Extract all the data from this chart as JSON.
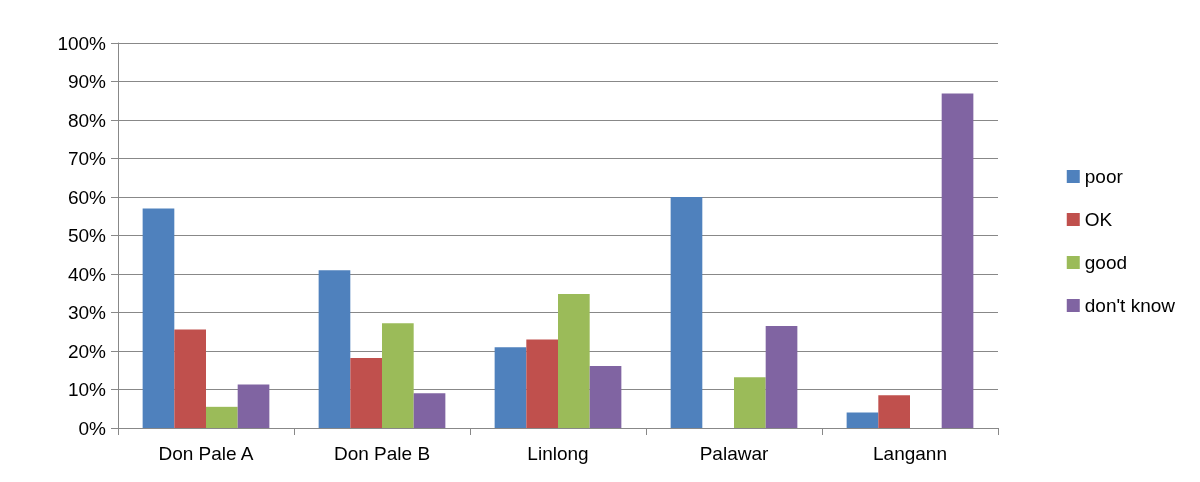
{
  "chart_data": {
    "type": "bar",
    "categories": [
      "Don Pale A",
      "Don Pale B",
      "Linlong",
      "Palawar",
      "Langann"
    ],
    "series": [
      {
        "name": "poor",
        "color": "#4f81bd",
        "values": [
          57,
          41,
          21,
          60,
          4
        ]
      },
      {
        "name": "OK",
        "color": "#c0504d",
        "values": [
          25.6,
          18.2,
          23,
          0,
          8.5
        ]
      },
      {
        "name": "good",
        "color": "#9bbb59",
        "values": [
          5.5,
          27.2,
          34.8,
          13.2,
          0
        ]
      },
      {
        "name": "don't know",
        "color": "#8064a2",
        "values": [
          11.3,
          9,
          16.1,
          26.5,
          86.9
        ]
      }
    ],
    "ylim": [
      0,
      100
    ],
    "yticks": [
      {
        "value": 0,
        "label": "0%"
      },
      {
        "value": 10,
        "label": "10%"
      },
      {
        "value": 20,
        "label": "20%"
      },
      {
        "value": 30,
        "label": "30%"
      },
      {
        "value": 40,
        "label": "40%"
      },
      {
        "value": 50,
        "label": "50%"
      },
      {
        "value": 60,
        "label": "60%"
      },
      {
        "value": 70,
        "label": "70%"
      },
      {
        "value": 80,
        "label": "80%"
      },
      {
        "value": 90,
        "label": "90%"
      },
      {
        "value": 100,
        "label": "100%"
      }
    ],
    "grid": "y",
    "legend": "right"
  }
}
